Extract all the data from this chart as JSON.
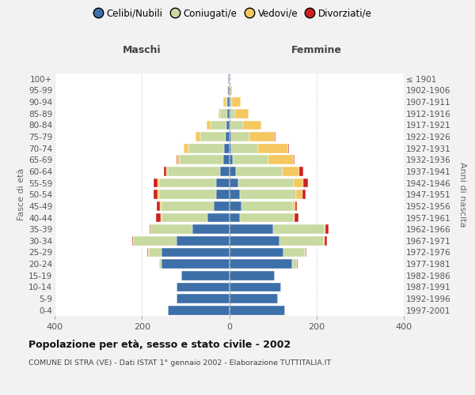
{
  "age_groups": [
    "0-4",
    "5-9",
    "10-14",
    "15-19",
    "20-24",
    "25-29",
    "30-34",
    "35-39",
    "40-44",
    "45-49",
    "50-54",
    "55-59",
    "60-64",
    "65-69",
    "70-74",
    "75-79",
    "80-84",
    "85-89",
    "90-94",
    "95-99",
    "100+"
  ],
  "birth_years": [
    "1997-2001",
    "1992-1996",
    "1987-1991",
    "1982-1986",
    "1977-1981",
    "1972-1976",
    "1967-1971",
    "1962-1966",
    "1957-1961",
    "1952-1956",
    "1947-1951",
    "1942-1946",
    "1937-1941",
    "1932-1936",
    "1927-1931",
    "1922-1926",
    "1917-1921",
    "1912-1916",
    "1907-1911",
    "1902-1906",
    "≤ 1901"
  ],
  "male_celibi": [
    140,
    120,
    120,
    110,
    155,
    155,
    120,
    85,
    50,
    35,
    30,
    30,
    20,
    14,
    12,
    8,
    7,
    5,
    4,
    2,
    2
  ],
  "male_coniugati": [
    0,
    0,
    0,
    0,
    5,
    30,
    100,
    95,
    105,
    120,
    130,
    130,
    120,
    100,
    82,
    58,
    35,
    15,
    5,
    2,
    0
  ],
  "male_vedovi": [
    0,
    0,
    0,
    0,
    1,
    1,
    1,
    1,
    2,
    3,
    5,
    5,
    5,
    5,
    10,
    12,
    10,
    5,
    4,
    1,
    0
  ],
  "male_divorziati": [
    0,
    0,
    0,
    0,
    0,
    2,
    2,
    2,
    10,
    8,
    8,
    8,
    5,
    2,
    0,
    0,
    0,
    0,
    0,
    0,
    0
  ],
  "female_celibi": [
    128,
    112,
    118,
    105,
    145,
    125,
    115,
    100,
    25,
    28,
    25,
    20,
    15,
    8,
    5,
    5,
    3,
    3,
    2,
    1,
    1
  ],
  "female_coniugati": [
    0,
    0,
    0,
    0,
    10,
    48,
    102,
    118,
    122,
    118,
    128,
    128,
    108,
    82,
    62,
    42,
    28,
    10,
    4,
    1,
    0
  ],
  "female_vedovi": [
    0,
    0,
    0,
    0,
    1,
    2,
    2,
    2,
    3,
    5,
    14,
    22,
    38,
    58,
    68,
    58,
    42,
    32,
    20,
    5,
    0
  ],
  "female_divorziati": [
    0,
    0,
    0,
    0,
    1,
    2,
    5,
    8,
    8,
    5,
    8,
    10,
    8,
    2,
    2,
    2,
    0,
    0,
    0,
    0,
    0
  ],
  "colors": {
    "celibi": "#3d6fa8",
    "coniugati": "#c8daa0",
    "vedovi": "#f5c860",
    "divorziati": "#cc2222"
  },
  "title_main": "Popolazione per età, sesso e stato civile - 2002",
  "title_sub": "COMUNE DI STRA (VE) - Dati ISTAT 1° gennaio 2002 - Elaborazione TUTTITALIA.IT",
  "label_maschi": "Maschi",
  "label_femmine": "Femmine",
  "ylabel_left": "Fasce di età",
  "ylabel_right": "Anni di nascita",
  "xlim": 400,
  "background_color": "#f2f2f2",
  "bar_bg_color": "#ffffff",
  "legend_labels": [
    "Celibi/Nubili",
    "Coniugati/e",
    "Vedovi/e",
    "Divorziati/e"
  ]
}
